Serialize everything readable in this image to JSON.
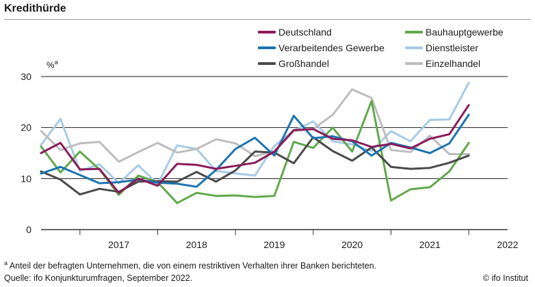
{
  "title": "Kredithürde",
  "footnote": {
    "marker": "a",
    "text": " Anteil der befragten Unternehmen, die von einem restriktiven Verhalten ihrer Banken berichteten."
  },
  "source": "Quelle: ifo Konjunkturumfragen, September 2022.",
  "copyright": "© ifo Institut",
  "chart_data": {
    "type": "line",
    "title": "Kredithürde",
    "ylabel": "%",
    "ylabel_marker": "a",
    "xlabel": "",
    "ylim": [
      0,
      30
    ],
    "yticks": [
      0,
      10,
      20,
      30
    ],
    "x_ticks": [
      "2017",
      "2018",
      "2019",
      "2020",
      "2021",
      "2022"
    ],
    "grid": "horizontal",
    "legend_position": "top-right",
    "x": [
      "2016-07",
      "2016-10",
      "2017-01",
      "2017-04",
      "2017-07",
      "2017-10",
      "2018-01",
      "2018-04",
      "2018-07",
      "2018-10",
      "2019-01",
      "2019-04",
      "2019-07",
      "2019-10",
      "2020-01",
      "2020-04",
      "2020-07",
      "2020-10",
      "2021-01",
      "2021-04",
      "2021-07",
      "2021-10",
      "2022-01",
      "2022-04",
      "2022-07"
    ],
    "series": [
      {
        "name": "Deutschland",
        "color": "#8b1a5a",
        "values": [
          15.0,
          17.0,
          11.8,
          11.9,
          7.2,
          10.0,
          8.6,
          12.9,
          12.7,
          11.9,
          12.5,
          13.1,
          15.3,
          19.5,
          19.7,
          17.8,
          17.5,
          16.2,
          16.8,
          15.9,
          17.8,
          18.7,
          24.4,
          null,
          null
        ]
      },
      {
        "name": "Bauhauptgewerbe",
        "color": "#62a84c",
        "values": [
          16.3,
          11.2,
          15.3,
          11.8,
          6.8,
          10.6,
          9.3,
          5.2,
          7.2,
          6.6,
          6.7,
          6.4,
          6.6,
          17.2,
          16.0,
          20.0,
          15.3,
          25.2,
          5.7,
          7.9,
          8.3,
          11.4,
          17.0,
          null,
          null
        ]
      },
      {
        "name": "Verarbeitendes Gewerbe",
        "color": "#1a74b0",
        "values": [
          11.0,
          12.3,
          10.7,
          9.1,
          9.3,
          9.8,
          9.2,
          9.0,
          8.4,
          11.7,
          15.8,
          18.0,
          14.5,
          22.3,
          17.9,
          18.3,
          17.3,
          14.5,
          17.0,
          16.1,
          15.0,
          16.9,
          22.5,
          null,
          null
        ]
      },
      {
        "name": "Dienstleister",
        "color": "#a6cbe6",
        "values": [
          16.6,
          21.7,
          11.5,
          12.8,
          9.1,
          12.6,
          8.9,
          16.5,
          15.8,
          11.5,
          11.0,
          10.6,
          16.4,
          19.4,
          21.2,
          17.3,
          16.7,
          15.4,
          19.3,
          17.3,
          21.5,
          21.6,
          28.8,
          null,
          null
        ]
      },
      {
        "name": "Großhandel",
        "color": "#4a4a4a",
        "values": [
          11.4,
          9.8,
          6.9,
          8.0,
          7.4,
          9.4,
          9.5,
          9.4,
          11.3,
          9.4,
          11.6,
          15.3,
          15.1,
          13.0,
          18.1,
          15.4,
          13.5,
          16.1,
          12.3,
          11.9,
          12.1,
          13.1,
          14.5,
          null,
          null
        ]
      },
      {
        "name": "Einzelhandel",
        "color": "#bdbdbd",
        "values": [
          19.3,
          15.6,
          16.9,
          17.2,
          13.3,
          15.2,
          17.0,
          15.1,
          15.8,
          17.7,
          16.9,
          14.4,
          15.3,
          19.3,
          19.7,
          22.5,
          27.5,
          25.8,
          15.6,
          15.2,
          18.4,
          14.8,
          14.8,
          null,
          null
        ]
      }
    ]
  }
}
